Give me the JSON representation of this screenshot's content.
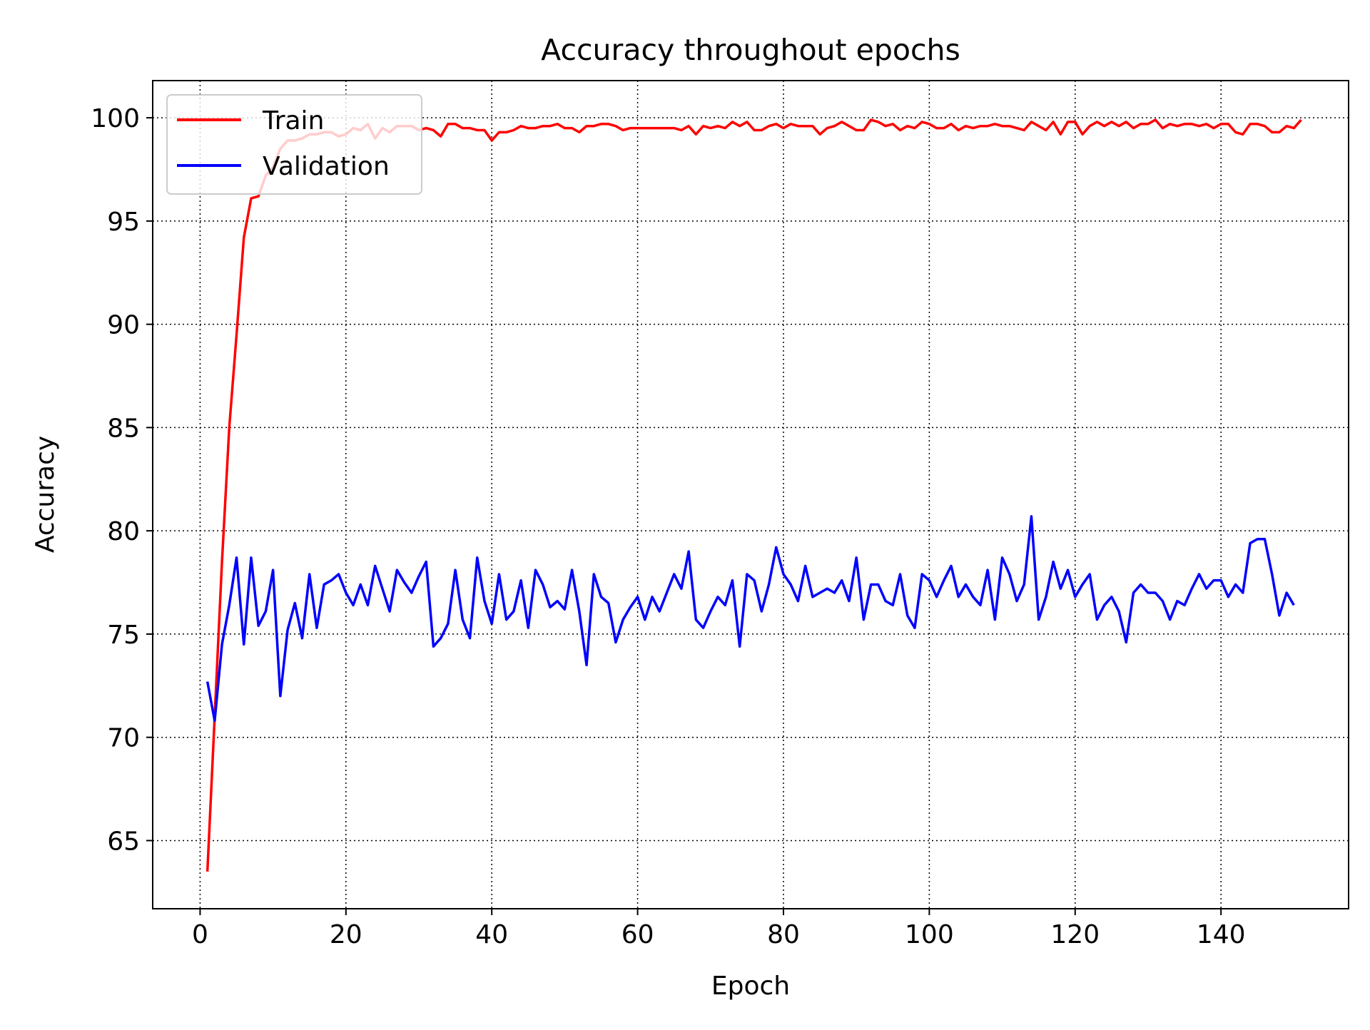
{
  "chart_data": {
    "type": "line",
    "title": "Accuracy throughout epochs",
    "xlabel": "Epoch",
    "ylabel": "Accuracy",
    "xlim": [
      -6.5,
      157.5
    ],
    "ylim": [
      61.7,
      101.8
    ],
    "xticks": [
      0,
      20,
      40,
      60,
      80,
      100,
      120,
      140
    ],
    "yticks": [
      65,
      70,
      75,
      80,
      85,
      90,
      95,
      100
    ],
    "grid": true,
    "legend_position": "upper-left",
    "x_start": 1,
    "series": [
      {
        "name": "Train",
        "color": "#ff0000",
        "values": [
          63.5,
          71.0,
          78.5,
          85.0,
          89.5,
          94.2,
          96.1,
          96.2,
          97.2,
          97.6,
          98.5,
          98.9,
          98.9,
          99.0,
          99.2,
          99.2,
          99.3,
          99.3,
          99.1,
          99.2,
          99.5,
          99.4,
          99.7,
          99.0,
          99.5,
          99.3,
          99.6,
          99.6,
          99.6,
          99.4,
          99.5,
          99.4,
          99.1,
          99.7,
          99.7,
          99.5,
          99.5,
          99.4,
          99.4,
          98.9,
          99.3,
          99.3,
          99.4,
          99.6,
          99.5,
          99.5,
          99.6,
          99.6,
          99.7,
          99.5,
          99.5,
          99.3,
          99.6,
          99.6,
          99.7,
          99.7,
          99.6,
          99.4,
          99.5,
          99.5,
          99.5,
          99.5,
          99.5,
          99.5,
          99.5,
          99.4,
          99.6,
          99.2,
          99.6,
          99.5,
          99.6,
          99.5,
          99.8,
          99.6,
          99.8,
          99.4,
          99.4,
          99.6,
          99.7,
          99.5,
          99.7,
          99.6,
          99.6,
          99.6,
          99.2,
          99.5,
          99.6,
          99.8,
          99.6,
          99.4,
          99.4,
          99.9,
          99.8,
          99.6,
          99.7,
          99.4,
          99.6,
          99.5,
          99.8,
          99.7,
          99.5,
          99.5,
          99.7,
          99.4,
          99.6,
          99.5,
          99.6,
          99.6,
          99.7,
          99.6,
          99.6,
          99.5,
          99.4,
          99.8,
          99.6,
          99.4,
          99.8,
          99.2,
          99.8,
          99.8,
          99.2,
          99.6,
          99.8,
          99.6,
          99.8,
          99.6,
          99.8,
          99.5,
          99.7,
          99.7,
          99.9,
          99.5,
          99.7,
          99.6,
          99.7,
          99.7,
          99.6,
          99.7,
          99.5,
          99.7,
          99.7,
          99.3,
          99.2,
          99.7,
          99.7,
          99.6,
          99.3,
          99.3,
          99.6,
          99.5,
          99.9
        ]
      },
      {
        "name": "Validation",
        "color": "#0000ff",
        "values": [
          72.7,
          70.8,
          74.5,
          76.4,
          78.7,
          74.5,
          78.7,
          75.4,
          76.1,
          78.1,
          72.0,
          75.2,
          76.5,
          74.8,
          77.9,
          75.3,
          77.4,
          77.6,
          77.9,
          77.0,
          76.4,
          77.4,
          76.4,
          78.3,
          77.2,
          76.1,
          78.1,
          77.5,
          77.0,
          77.8,
          78.5,
          74.4,
          74.8,
          75.5,
          78.1,
          75.7,
          74.8,
          78.7,
          76.6,
          75.5,
          77.9,
          75.7,
          76.1,
          77.6,
          75.3,
          78.1,
          77.4,
          76.3,
          76.6,
          76.2,
          78.1,
          76.1,
          73.5,
          77.9,
          76.8,
          76.5,
          74.6,
          75.7,
          76.3,
          76.8,
          75.7,
          76.8,
          76.1,
          77.0,
          77.9,
          77.2,
          79.0,
          75.7,
          75.3,
          76.1,
          76.8,
          76.4,
          77.6,
          74.4,
          77.9,
          77.6,
          76.1,
          77.4,
          79.2,
          77.9,
          77.4,
          76.6,
          78.3,
          76.8,
          77.0,
          77.2,
          77.0,
          77.6,
          76.6,
          78.7,
          75.7,
          77.4,
          77.4,
          76.6,
          76.4,
          77.9,
          75.9,
          75.3,
          77.9,
          77.6,
          76.8,
          77.6,
          78.3,
          76.8,
          77.4,
          76.8,
          76.4,
          78.1,
          75.7,
          78.7,
          77.9,
          76.6,
          77.4,
          80.7,
          75.7,
          76.8,
          78.5,
          77.2,
          78.1,
          76.8,
          77.4,
          77.9,
          75.7,
          76.4,
          76.8,
          76.1,
          74.6,
          77.0,
          77.4,
          77.0,
          77.0,
          76.6,
          75.7,
          76.6,
          76.4,
          77.2,
          77.9,
          77.2,
          77.6,
          77.6,
          76.8,
          77.4,
          77.0,
          79.4,
          79.6,
          79.6,
          77.9,
          75.9,
          77.0,
          76.4
        ]
      }
    ]
  }
}
